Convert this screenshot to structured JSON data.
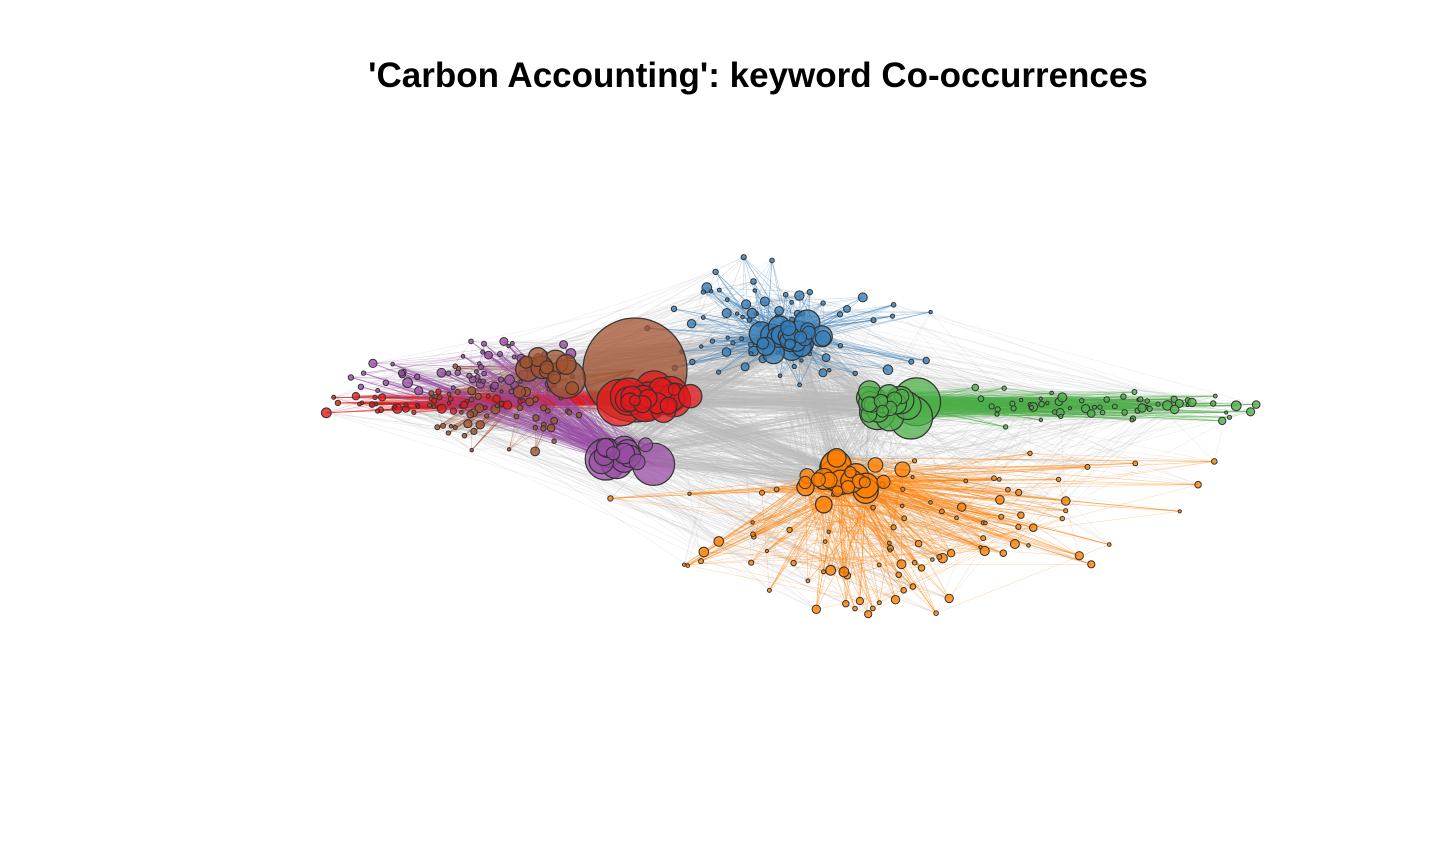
{
  "title": "'Carbon Accounting': keyword Co-occurrences",
  "colors": {
    "background": "#ffffff",
    "inter_cluster_edge": "#b9b9b9",
    "node_stroke": "#333333"
  },
  "clusters": [
    {
      "id": "brown",
      "color": "#a0522d"
    },
    {
      "id": "red",
      "color": "#e41a1c"
    },
    {
      "id": "purple",
      "color": "#984ea3"
    },
    {
      "id": "blue",
      "color": "#377eb8"
    },
    {
      "id": "green",
      "color": "#4daf4a"
    },
    {
      "id": "orange",
      "color": "#ff7f00"
    }
  ]
}
